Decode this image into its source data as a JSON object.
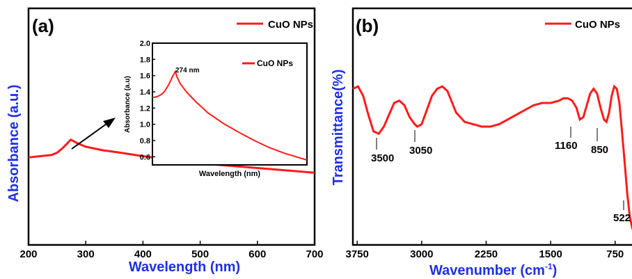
{
  "colors": {
    "curve": "#ff1a1a",
    "axis_title": "#1f2fe6",
    "ink": "#000000"
  },
  "chart_data": [
    {
      "panel": "(a)",
      "type": "line",
      "xlabel": "Wavelength (nm)",
      "ylabel": "Absorbance (a.u.)",
      "xlim": [
        200,
        700
      ],
      "x_ticks": [
        "200",
        "300",
        "400",
        "500",
        "600",
        "700"
      ],
      "legend": "CuO NPs",
      "legend_position": "top-right",
      "series": [
        {
          "name": "CuO NPs",
          "x": [
            200,
            220,
            240,
            250,
            260,
            268,
            274,
            285,
            300,
            330,
            360,
            400,
            450,
            500,
            550,
            600,
            650,
            700
          ],
          "y": [
            0.37,
            0.375,
            0.38,
            0.39,
            0.41,
            0.43,
            0.445,
            0.43,
            0.415,
            0.4,
            0.39,
            0.375,
            0.36,
            0.345,
            0.335,
            0.325,
            0.315,
            0.305
          ]
        }
      ],
      "inset": {
        "xlabel": "Wavelength (nm)",
        "ylabel": "Absorbance (a.u)",
        "ylim": [
          0.5,
          2.0
        ],
        "y_ticks": [
          "0.6",
          "0.8",
          "1.0",
          "1.2",
          "1.4",
          "1.6",
          "1.8",
          "2.0"
        ],
        "legend": "CuO NPs",
        "peak_label": "274 nm",
        "series": [
          {
            "name": "CuO NPs",
            "x": [
              200,
              215,
              230,
              240,
              250,
              258,
              265,
              270,
              274,
              280,
              290,
              310,
              340,
              380,
              430,
              480,
              530,
              580,
              630,
              700
            ],
            "y": [
              1.33,
              1.34,
              1.37,
              1.41,
              1.47,
              1.53,
              1.59,
              1.62,
              1.65,
              1.58,
              1.5,
              1.4,
              1.28,
              1.14,
              1.01,
              0.9,
              0.8,
              0.71,
              0.64,
              0.56
            ]
          }
        ]
      }
    },
    {
      "panel": "(b)",
      "type": "line",
      "xlabel": "Wavenumber (cm",
      "xlabel_sup": "-1",
      "xlabel_close": ")",
      "ylabel": "Transmittance(%)",
      "xlim": [
        3800,
        400
      ],
      "x_ticks": [
        "3750",
        "3000",
        "2250",
        "1500",
        "750"
      ],
      "legend": "CuO NPs",
      "legend_position": "top-right",
      "peaks": [
        "3500",
        "3050",
        "1160",
        "850",
        "522"
      ],
      "series": [
        {
          "name": "CuO NPs",
          "x": [
            3800,
            3740,
            3680,
            3620,
            3560,
            3500,
            3440,
            3380,
            3320,
            3260,
            3200,
            3140,
            3080,
            3050,
            3000,
            2940,
            2880,
            2820,
            2760,
            2700,
            2600,
            2500,
            2400,
            2300,
            2200,
            2100,
            2000,
            1900,
            1800,
            1700,
            1600,
            1500,
            1400,
            1350,
            1300,
            1250,
            1200,
            1160,
            1120,
            1080,
            1040,
            1000,
            960,
            920,
            880,
            850,
            820,
            790,
            760,
            730,
            700,
            670,
            640,
            610,
            580,
            550,
            522,
            500,
            470,
            440,
            420
          ],
          "y": [
            66,
            67,
            63,
            55,
            48,
            47,
            50,
            55,
            60,
            61,
            59,
            54,
            51,
            50,
            51,
            57,
            63,
            66,
            67,
            65,
            56,
            52,
            51,
            50,
            50,
            51,
            53,
            55,
            57,
            59,
            60,
            60,
            61,
            62,
            62,
            61,
            58,
            53,
            54,
            59,
            64,
            66,
            64,
            58,
            53,
            52,
            56,
            63,
            67,
            66,
            60,
            48,
            35,
            22,
            12,
            7,
            5,
            8,
            20,
            35,
            45
          ]
        }
      ]
    }
  ]
}
